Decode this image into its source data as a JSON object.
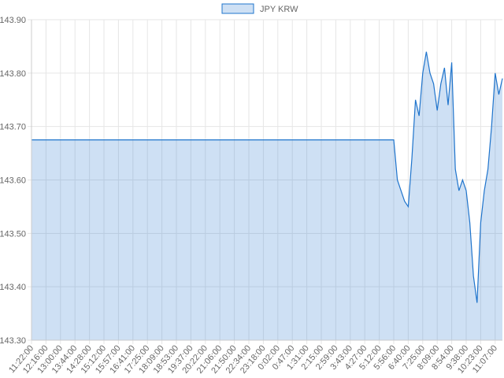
{
  "chart_data": {
    "type": "area",
    "categories": [
      "11:22:00",
      null,
      null,
      null,
      "12:16:00",
      null,
      null,
      null,
      "13:00:00",
      null,
      null,
      null,
      "13:44:00",
      null,
      null,
      null,
      "14:28:00",
      null,
      null,
      null,
      "15:12:00",
      null,
      null,
      null,
      "15:57:00",
      null,
      null,
      null,
      "16:41:00",
      null,
      null,
      null,
      "17:25:00",
      null,
      null,
      null,
      "18:09:00",
      null,
      null,
      null,
      "18:53:00",
      null,
      null,
      null,
      "19:37:00",
      null,
      null,
      null,
      "20:22:00",
      null,
      null,
      null,
      "21:06:00",
      null,
      null,
      null,
      "21:50:00",
      null,
      null,
      null,
      "22:34:00",
      null,
      null,
      null,
      "23:18:00",
      null,
      null,
      null,
      "0:02:00",
      null,
      null,
      null,
      "0:47:00",
      null,
      null,
      null,
      "1:31:00",
      null,
      null,
      null,
      "2:15:00",
      null,
      null,
      null,
      "2:59:00",
      null,
      null,
      null,
      "3:43:00",
      null,
      null,
      null,
      "4:27:00",
      null,
      null,
      null,
      "5:12:00",
      null,
      null,
      null,
      "5:56:00",
      null,
      null,
      null,
      "6:40:00",
      null,
      null,
      null,
      "7:25:00",
      null,
      null,
      null,
      "8:09:00",
      null,
      null,
      null,
      "8:54:00",
      null,
      null,
      null,
      "9:38:00",
      null,
      null,
      null,
      "10:23:00",
      null,
      null,
      null,
      "11:07:00",
      null,
      null
    ],
    "series": [
      {
        "name": "JPY KRW",
        "color": "#1f74cc",
        "values": [
          143.675,
          143.675,
          143.675,
          143.675,
          143.675,
          143.675,
          143.675,
          143.675,
          143.675,
          143.675,
          143.675,
          143.675,
          143.675,
          143.675,
          143.675,
          143.675,
          143.675,
          143.675,
          143.675,
          143.675,
          143.675,
          143.675,
          143.675,
          143.675,
          143.675,
          143.675,
          143.675,
          143.675,
          143.675,
          143.675,
          143.675,
          143.675,
          143.675,
          143.675,
          143.675,
          143.675,
          143.675,
          143.675,
          143.675,
          143.675,
          143.675,
          143.675,
          143.675,
          143.675,
          143.675,
          143.675,
          143.675,
          143.675,
          143.675,
          143.675,
          143.675,
          143.675,
          143.675,
          143.675,
          143.675,
          143.675,
          143.675,
          143.675,
          143.675,
          143.675,
          143.675,
          143.675,
          143.675,
          143.675,
          143.675,
          143.675,
          143.675,
          143.675,
          143.675,
          143.675,
          143.675,
          143.675,
          143.675,
          143.675,
          143.675,
          143.675,
          143.675,
          143.675,
          143.675,
          143.675,
          143.675,
          143.675,
          143.675,
          143.675,
          143.675,
          143.675,
          143.675,
          143.675,
          143.675,
          143.675,
          143.675,
          143.675,
          143.675,
          143.675,
          143.675,
          143.675,
          143.675,
          143.675,
          143.675,
          143.675,
          143.675,
          143.6,
          143.58,
          143.56,
          143.55,
          143.64,
          143.75,
          143.72,
          143.8,
          143.84,
          143.8,
          143.78,
          143.73,
          143.78,
          143.81,
          143.74,
          143.82,
          143.62,
          143.58,
          143.6,
          143.58,
          143.52,
          143.42,
          143.37,
          143.52,
          143.58,
          143.62,
          143.7,
          143.8,
          143.76,
          143.79
        ]
      }
    ],
    "ylim": [
      143.3,
      143.9
    ],
    "yticks": [
      {
        "value": 143.3,
        "label": "143.30"
      },
      {
        "value": 143.4,
        "label": "143.40"
      },
      {
        "value": 143.5,
        "label": "143.50"
      },
      {
        "value": 143.6,
        "label": "143.60"
      },
      {
        "value": 143.7,
        "label": "143.70"
      },
      {
        "value": 143.8,
        "label": "143.80"
      },
      {
        "value": 143.9,
        "label": "143.90"
      }
    ],
    "grid": true
  }
}
